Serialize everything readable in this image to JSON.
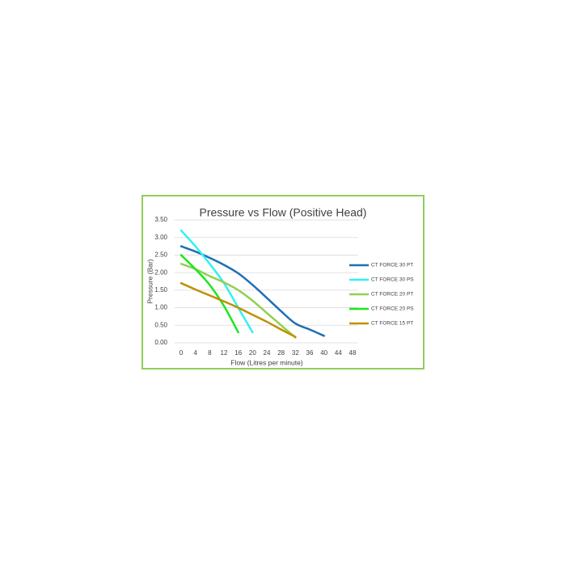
{
  "chart_data": {
    "type": "line",
    "title": "Pressure vs Flow (Positive Head)",
    "x_label": "Flow (Litres per minute)",
    "y_label": "Pressure (Bar)",
    "xlim": [
      0,
      48
    ],
    "xticks": [
      0,
      4,
      8,
      12,
      16,
      20,
      24,
      28,
      32,
      36,
      40,
      44,
      48
    ],
    "ylim": [
      0,
      3.5
    ],
    "yticks": [
      {
        "value": 0,
        "label": "0.00"
      },
      {
        "value": 0.5,
        "label": "0.50"
      },
      {
        "value": 1,
        "label": "1.00"
      },
      {
        "value": 1.5,
        "label": "1.50"
      },
      {
        "value": 2,
        "label": "2.00"
      },
      {
        "value": 2.5,
        "label": "2.50"
      },
      {
        "value": 3,
        "label": "3.00"
      },
      {
        "value": 3.5,
        "label": "3.50"
      }
    ],
    "grid": true,
    "legend": "right",
    "series": [
      {
        "name": "CT FORCE 30 PT",
        "color": "#1f6fb4",
        "x": [
          0,
          4,
          8,
          12,
          16,
          20,
          24,
          28,
          32,
          36,
          40
        ],
        "values": [
          2.75,
          2.6,
          2.42,
          2.22,
          1.98,
          1.65,
          1.28,
          0.9,
          0.55,
          0.38,
          0.2
        ]
      },
      {
        "name": "CT FORCE 30 PS",
        "color": "#33f0f5",
        "x": [
          0,
          4,
          8,
          12,
          16,
          20
        ],
        "values": [
          3.2,
          2.75,
          2.25,
          1.7,
          1.0,
          0.3
        ]
      },
      {
        "name": "CT FORCE 20 PT",
        "color": "#92d050",
        "x": [
          0,
          4,
          8,
          12,
          16,
          20,
          24,
          28,
          32
        ],
        "values": [
          2.25,
          2.1,
          1.9,
          1.72,
          1.5,
          1.2,
          0.85,
          0.5,
          0.15
        ]
      },
      {
        "name": "CT FORCE 20 PS",
        "color": "#1ee61e",
        "x": [
          0,
          4,
          8,
          12,
          16
        ],
        "values": [
          2.5,
          2.1,
          1.65,
          1.05,
          0.3
        ]
      },
      {
        "name": "CT FORCE 15 PT",
        "color": "#bf9000",
        "x": [
          0,
          4,
          8,
          12,
          16,
          20,
          24,
          28,
          32
        ],
        "values": [
          1.7,
          1.52,
          1.35,
          1.18,
          1.0,
          0.8,
          0.6,
          0.38,
          0.17
        ]
      }
    ]
  }
}
